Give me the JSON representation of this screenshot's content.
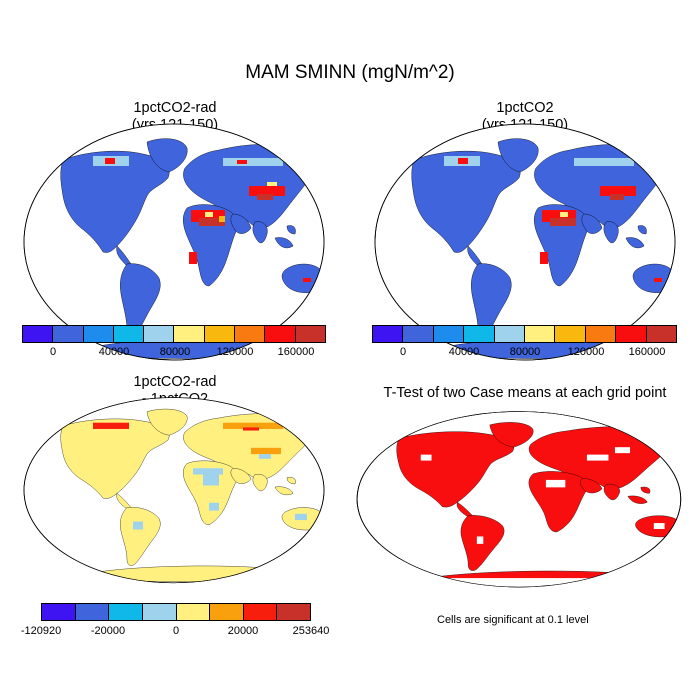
{
  "title": "MAM SMINN (mgN/m^2)",
  "panels": {
    "top_left": {
      "title_line1": "1pctCO2-rad",
      "title_line2": "(yrs 121-150)"
    },
    "top_right": {
      "title_line1": "1pctCO2",
      "title_line2": "(yrs 121-150)"
    },
    "bottom_left": {
      "title_line1": "1pctCO2-rad",
      "title_line2": "- 1pctCO2"
    },
    "bottom_right": {
      "title": "T-Test of two Case means at each grid point",
      "note": "Cells are significant at 0.1 level"
    }
  },
  "colorbar_main": {
    "colors": [
      "#3f14f2",
      "#3f64db",
      "#1e8ced",
      "#10b8ea",
      "#9ed2ed",
      "#fff080",
      "#f9b80e",
      "#f97a10",
      "#f80e0e",
      "#c8302a"
    ],
    "tick_labels": [
      "0",
      "40000",
      "80000",
      "120000",
      "160000"
    ]
  },
  "colorbar_diff": {
    "colors": [
      "#3f14f2",
      "#3f64db",
      "#10b8ea",
      "#9ed2ed",
      "#fff080",
      "#f9a00e",
      "#f81e0e",
      "#c8302a"
    ],
    "tick_labels": [
      "-120920",
      "-20000",
      "0",
      "20000",
      "253640"
    ]
  },
  "map_colors": {
    "ocean": "#ffffff",
    "land_main": "#3f64db",
    "land_diff": "#fff080",
    "significant": "#f80e0e"
  }
}
